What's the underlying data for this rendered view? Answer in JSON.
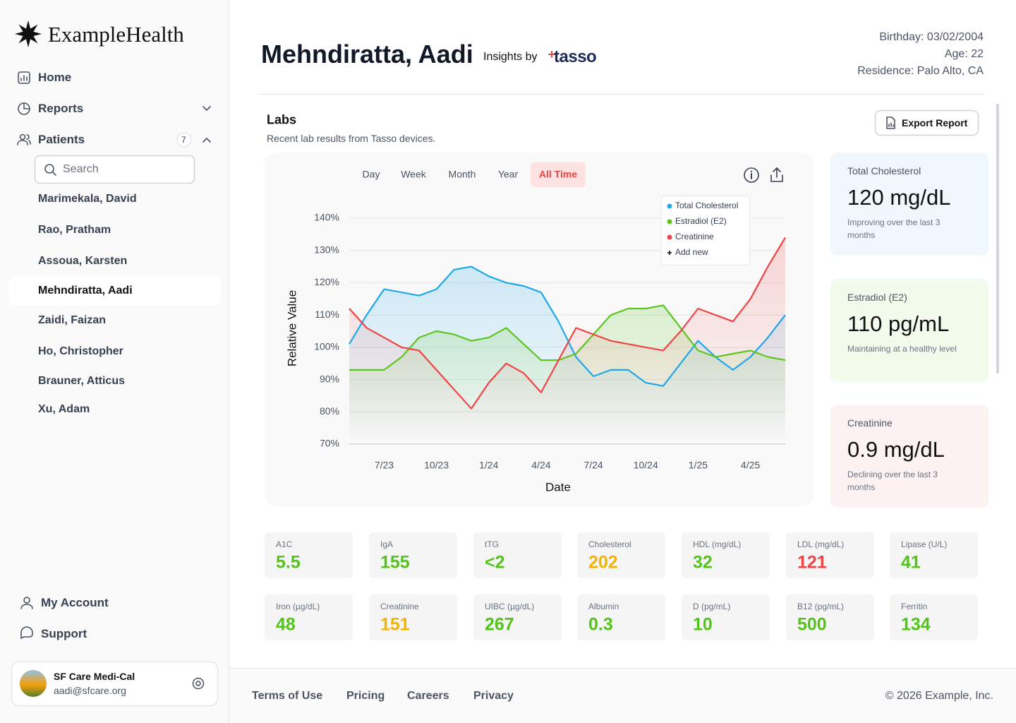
{
  "sidebar": {
    "brand": "ExampleHealth",
    "nav": [
      "Home",
      "Reports",
      "Patients"
    ],
    "patients_badge": "7",
    "search_placeholder": "Search",
    "patients": [
      "Marimekala, David",
      "Rao, Pratham",
      "Assoua, Karsten",
      "Mehndiratta, Aadi",
      "Zaidi, Faizan",
      "Ho, Christopher",
      "Brauner, Atticus",
      "Xu, Adam"
    ],
    "active_patient": 3,
    "bottom_nav": [
      "My Account",
      "Support"
    ],
    "account": {
      "name": "SF Care Medi-Cal",
      "email": "aadi@sfcare.org"
    }
  },
  "header": {
    "name": "Mehndiratta, Aadi",
    "insights_by": "Insights by",
    "brand": "tasso",
    "details": [
      "Birthday: 03/02/2004",
      "Age: 22",
      "Residence: Palo Alto, CA"
    ]
  },
  "labs": {
    "title": "Labs",
    "subtitle": "Recent lab results from Tasso devices.",
    "export": "Export Report"
  },
  "chart_data": {
    "type": "line",
    "tabs": [
      "Day",
      "Week",
      "Month",
      "Year",
      "All Time"
    ],
    "active_tab": 4,
    "add_new": "Add new",
    "x_label": "Date",
    "y_label": "Relative Value",
    "categories": [
      null,
      null,
      "7/23",
      null,
      null,
      "10/23",
      null,
      null,
      "1/24",
      null,
      null,
      "4/24",
      null,
      null,
      "7/24",
      null,
      null,
      "10/24",
      null,
      null,
      "1/25",
      null,
      null,
      "4/25",
      null,
      null
    ],
    "series": [
      {
        "name": "Total Cholesterol",
        "color": "#1fa7e8",
        "values": [
          101,
          110,
          118,
          117,
          116,
          118,
          124,
          125,
          122,
          120,
          119,
          117,
          108,
          97,
          91,
          93,
          93,
          89,
          88,
          95,
          102,
          97,
          93,
          97,
          103,
          110
        ]
      },
      {
        "name": "Estradiol (E2)",
        "color": "#5cc520",
        "values": [
          93,
          93,
          93,
          97,
          103,
          105,
          104,
          102,
          103,
          106,
          101,
          96,
          96,
          98,
          104,
          110,
          112,
          112,
          113,
          106,
          99,
          97,
          98,
          99,
          97,
          96
        ]
      },
      {
        "name": "Creatinine",
        "color": "#ef4444",
        "values": [
          112,
          106,
          103,
          100,
          99,
          93,
          87,
          81,
          89,
          95,
          92,
          86,
          96,
          106,
          104,
          102,
          101,
          100,
          99,
          105,
          112,
          110,
          108,
          115,
          125,
          134
        ]
      }
    ],
    "ylim": [
      70,
      140
    ],
    "yticks": [
      {
        "value": 70,
        "label": "70%"
      },
      {
        "value": 80,
        "label": "80%"
      },
      {
        "value": 90,
        "label": "90%"
      },
      {
        "value": 100,
        "label": "100%"
      },
      {
        "value": 110,
        "label": "110%"
      },
      {
        "value": 120,
        "label": "120%"
      },
      {
        "value": 130,
        "label": "130%"
      },
      {
        "value": 140,
        "label": "140%"
      }
    ],
    "grid": true,
    "area": true
  },
  "summary_cards": [
    {
      "title": "Total Cholesterol",
      "value": "120 mg/dL",
      "description": "Improving over the last 3 months",
      "color": "#f0f8fd",
      "trend": "up"
    },
    {
      "title": "Estradiol (E2)",
      "value": "110 pg/mL",
      "description": "Maintaining at a healthy level",
      "color": "#f2fbec",
      "trend": "steady"
    },
    {
      "title": "Creatinine",
      "value": "0.9 mg/dL",
      "description": "Declining over the last 3 months",
      "color": "#fdf2f2",
      "trend": "down"
    }
  ],
  "lab_tiles": [
    {
      "label": "A1C",
      "value": 5.5,
      "color": "#52c41a"
    },
    {
      "label": "IgA",
      "value": 155,
      "color": "#52c41a"
    },
    {
      "label": "tTG",
      "value": "<2",
      "color": "#52c41a"
    },
    {
      "label": "Cholesterol",
      "value": 202,
      "color": "#f5b400"
    },
    {
      "label": "HDL (mg/dL)",
      "value": 32,
      "color": "#52c41a"
    },
    {
      "label": "LDL (mg/dL)",
      "value": 121,
      "color": "#ef4444"
    },
    {
      "label": "Lipase (U/L)",
      "value": 41,
      "color": "#52c41a"
    },
    {
      "label": "Iron (µg/dL)",
      "value": 48,
      "color": "#52c41a"
    },
    {
      "label": "Creatinine",
      "value": 151,
      "color": "#f5b400"
    },
    {
      "label": "UIBC (µg/dL)",
      "value": 267,
      "color": "#52c41a"
    },
    {
      "label": "Albumin",
      "value": 0.3,
      "color": "#52c41a"
    },
    {
      "label": "D (pg/mL)",
      "value": 10,
      "color": "#52c41a"
    },
    {
      "label": "B12  (pg/mL)",
      "value": 500,
      "color": "#52c41a"
    },
    {
      "label": "Ferritin",
      "value": 134,
      "color": "#52c41a"
    }
  ],
  "footer": {
    "links": [
      "Terms of Use",
      "Pricing",
      "Careers",
      "Privacy"
    ],
    "copyright": "© 2026 Example, Inc."
  }
}
